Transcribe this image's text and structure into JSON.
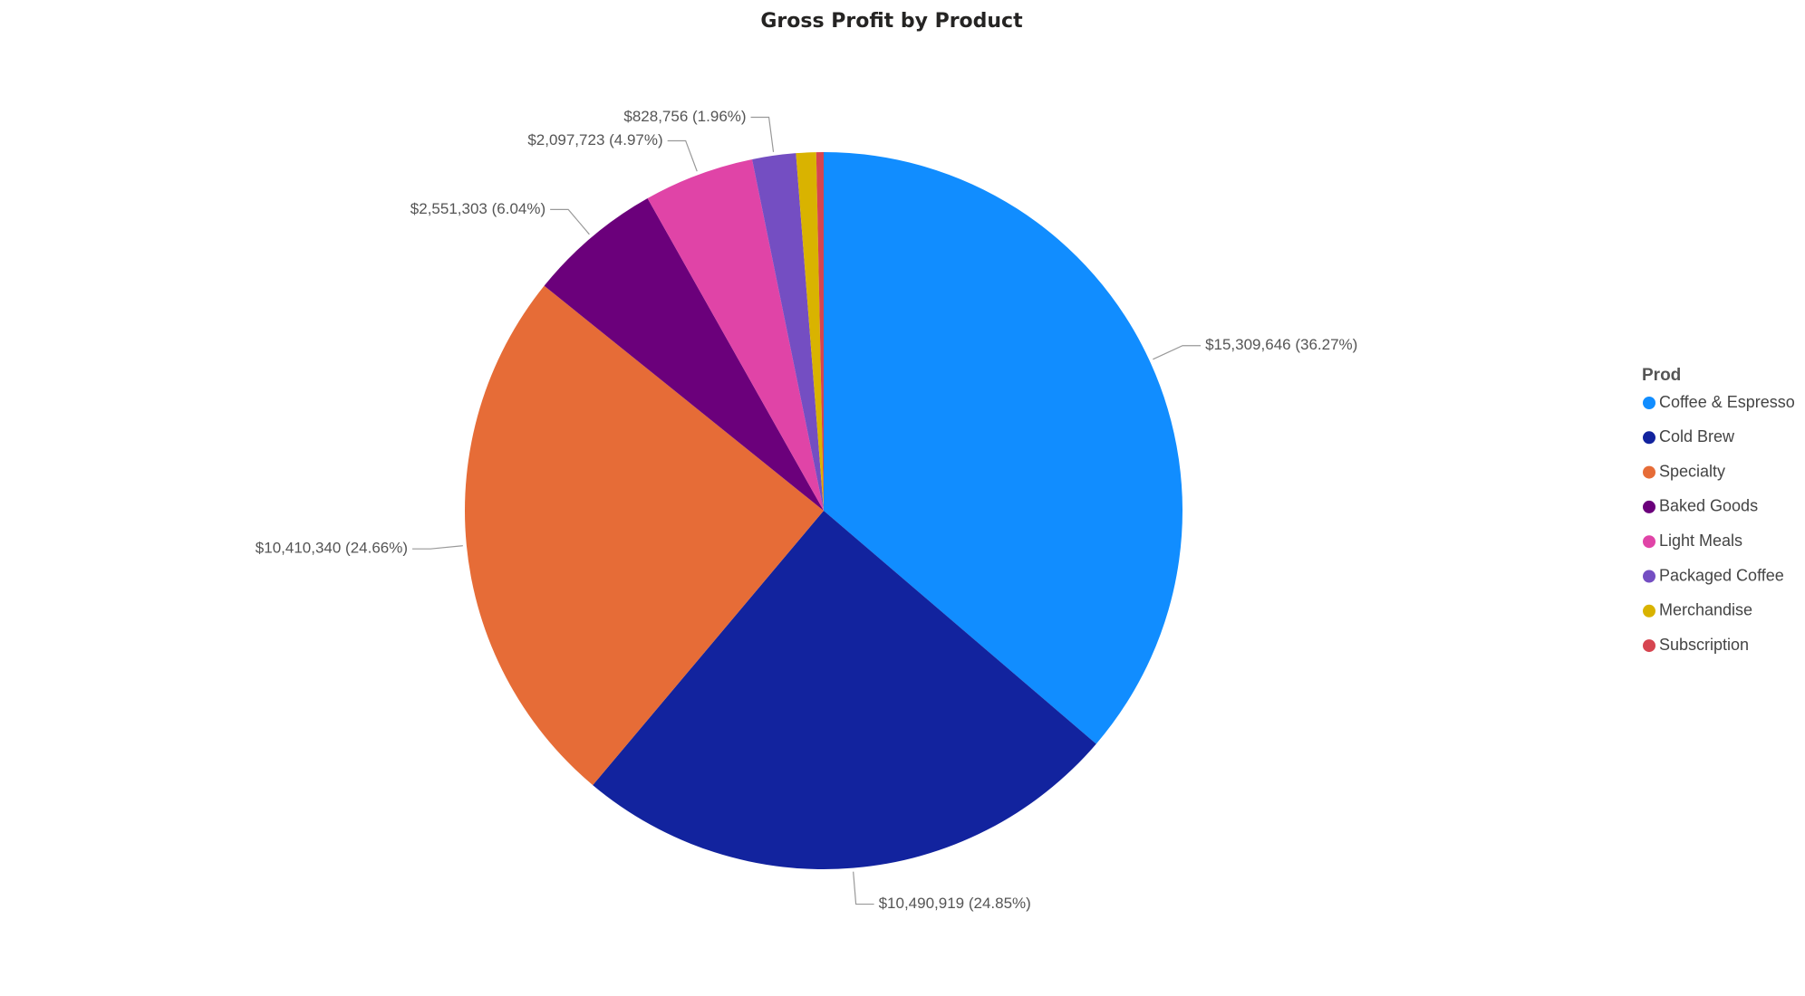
{
  "chart_data": {
    "type": "pie",
    "title": "Gross Profit by Product",
    "categories": [
      "Coffee & Espresso",
      "Cold Brew",
      "Specialty",
      "Baked Goods",
      "Light Meals",
      "Packaged Coffee",
      "Merchandise",
      "Subscription"
    ],
    "values": [
      15309646,
      10490919,
      10410340,
      2551303,
      2097723,
      828756,
      380000,
      140000
    ],
    "value_labels": [
      "$15,309,646 (36.27%)",
      "$10,490,919 (24.85%)",
      "$10,410,340 (24.66%)",
      "$2,551,303 (6.04%)",
      "$2,097,723 (4.97%)",
      "$828,756 (1.96%)",
      null,
      null
    ],
    "colors": [
      "#118DFF",
      "#12239E",
      "#E66C37",
      "#6B007B",
      "#E044A7",
      "#744EC2",
      "#D9B300",
      "#D64550"
    ],
    "legend_title": "Prod",
    "legend": "right"
  }
}
